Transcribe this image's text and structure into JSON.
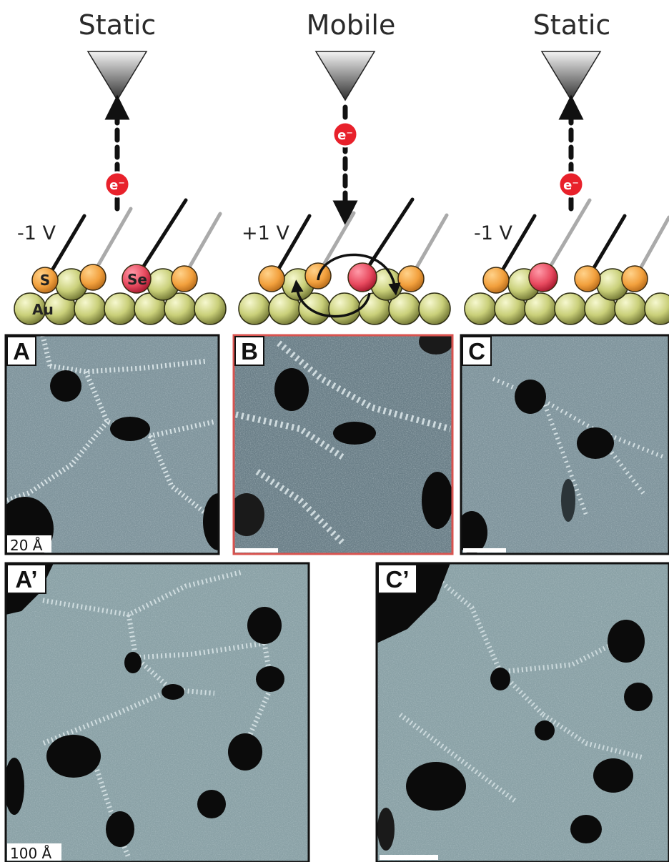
{
  "headers": {
    "left": "Static",
    "middle": "Mobile",
    "right": "Static"
  },
  "voltages": {
    "left": "-1 V",
    "middle": "+1 V",
    "right": "-1 V"
  },
  "atom_labels": {
    "sulfur": "S",
    "selenium": "Se",
    "gold": "Au"
  },
  "electron_label": "e⁻",
  "panels": {
    "A": "A",
    "B": "B",
    "C": "C",
    "A_prime": "A’",
    "C_prime": "C’"
  },
  "scale_bars": {
    "small": "20 Å",
    "large": "100 Å"
  },
  "colors": {
    "sulfur": "#f2a03d",
    "selenium": "#e84a5f",
    "gold": "#c9cf79",
    "electron": "#e8212b",
    "highlight_frame": "#d9534f",
    "stm_base": "#7f949c"
  }
}
